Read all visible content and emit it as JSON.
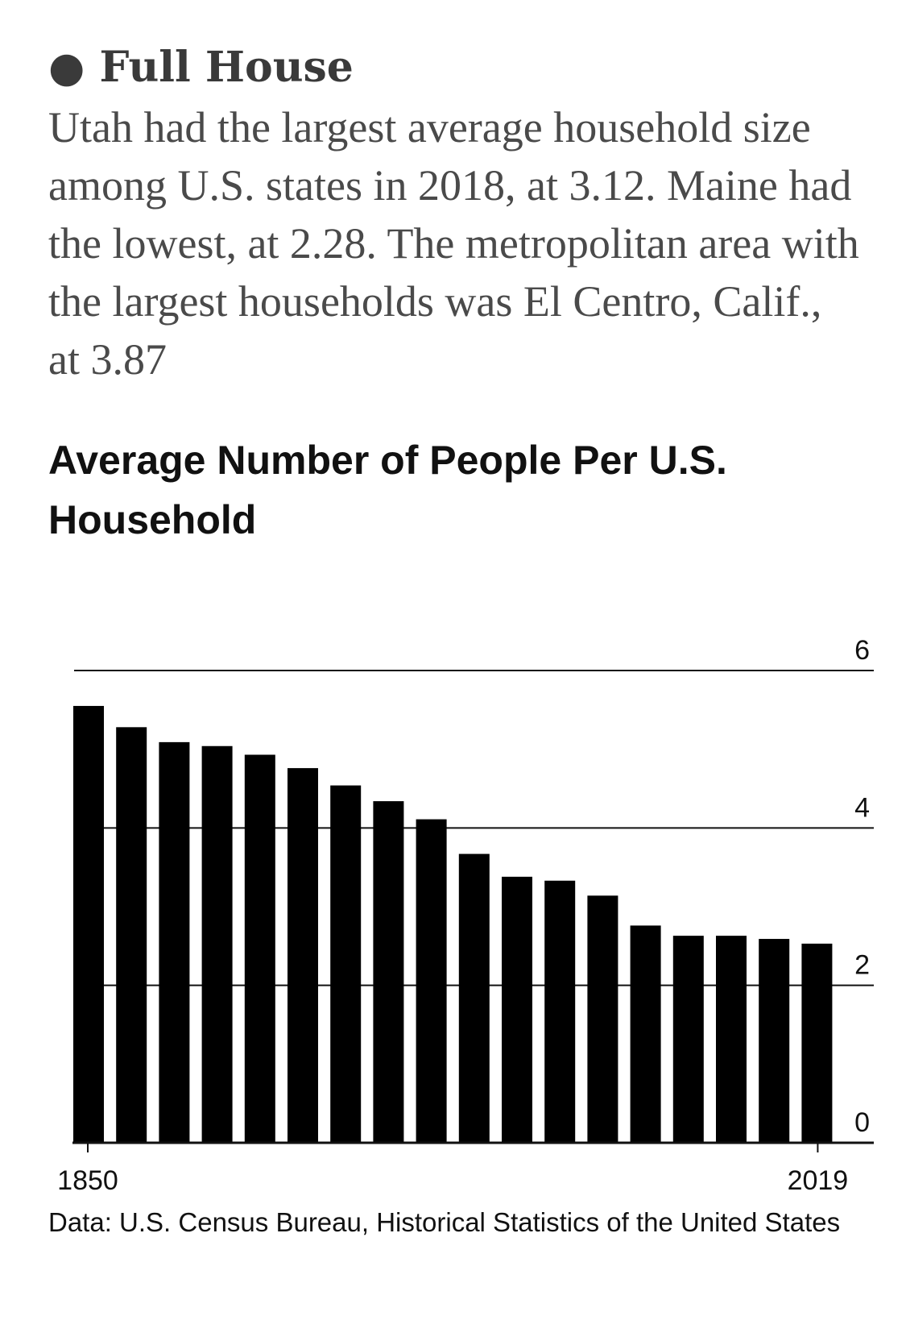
{
  "article": {
    "headline": "● Full House",
    "summary": "Utah had the largest average household size among U.S. states in 2018, at 3.12. Maine had the lowest, at 2.28. The metropolitan area with the largest households was El Centro, Calif., at 3.87"
  },
  "chart_data": {
    "type": "bar",
    "title": "Average Number of People Per U.S. Household",
    "xlabel": "",
    "ylabel": "",
    "values": [
      5.55,
      5.28,
      5.09,
      5.04,
      4.93,
      4.76,
      4.54,
      4.34,
      4.11,
      3.67,
      3.38,
      3.33,
      3.14,
      2.76,
      2.63,
      2.63,
      2.59,
      2.53
    ],
    "x_tick_labels": [
      "1850",
      "2019"
    ],
    "y_ticks": [
      0,
      2,
      4,
      6
    ],
    "ylim": [
      0,
      6
    ],
    "grid": true,
    "y_axis_position": "right",
    "bar_color": "#000000",
    "source": "Data: U.S. Census Bureau, Historical Statistics of the United States"
  }
}
